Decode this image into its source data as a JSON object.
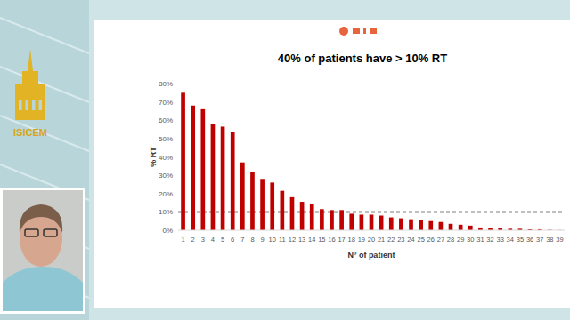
{
  "chart_data": {
    "type": "bar",
    "title": "40% of patients have > 10% RT",
    "x_label": "Nº of patient",
    "y_label": "% RT",
    "categories": [
      "1",
      "2",
      "3",
      "4",
      "5",
      "6",
      "7",
      "8",
      "9",
      "10",
      "11",
      "12",
      "13",
      "14",
      "15",
      "16",
      "17",
      "18",
      "19",
      "20",
      "21",
      "22",
      "23",
      "24",
      "25",
      "26",
      "27",
      "28",
      "29",
      "30",
      "31",
      "32",
      "33",
      "34",
      "35",
      "36",
      "37",
      "38",
      "39"
    ],
    "values": [
      75,
      68,
      66,
      58,
      56.5,
      53.5,
      37,
      32,
      28,
      26,
      21.5,
      18,
      15.5,
      14.5,
      11.5,
      11,
      11,
      9,
      8.5,
      8.5,
      8,
      7,
      6.5,
      6,
      5.5,
      5,
      4.5,
      3.5,
      3,
      2.5,
      1.5,
      1,
      1,
      0.8,
      0.8,
      0.5,
      0.5,
      0.2,
      0.1
    ],
    "color": "#c00000",
    "ylim": [
      0,
      80
    ],
    "yticks": [
      {
        "value": 0,
        "label": "0%"
      },
      {
        "value": 10,
        "label": "10%"
      },
      {
        "value": 20,
        "label": "20%"
      },
      {
        "value": 30,
        "label": "30%"
      },
      {
        "value": 40,
        "label": "40%"
      },
      {
        "value": 50,
        "label": "50%"
      },
      {
        "value": 60,
        "label": "60%"
      },
      {
        "value": 70,
        "label": "70%"
      },
      {
        "value": 80,
        "label": "80%"
      }
    ],
    "reference_line": 10,
    "grid": false
  },
  "slide": {
    "logo_text": "ISICEM"
  }
}
